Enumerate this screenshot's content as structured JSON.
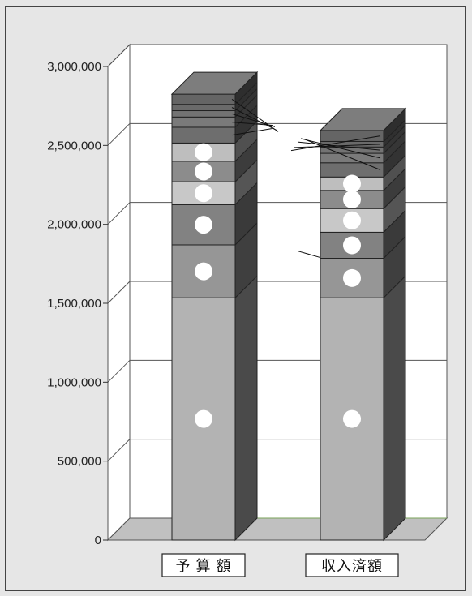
{
  "chart_data": {
    "type": "bar",
    "stacked": true,
    "three_d": true,
    "categories": [
      "予 算 額",
      "収入済額"
    ],
    "ylim": [
      0,
      3000000
    ],
    "yticks": [
      0,
      500000,
      1000000,
      1500000,
      2000000,
      2500000,
      3000000
    ],
    "ytick_labels": [
      "0",
      "500,000",
      "1,000,000",
      "1,500,000",
      "2,000,000",
      "2,500,000",
      "3,000,000"
    ],
    "grid": true,
    "legend": "none",
    "series": [
      {
        "values": [
          1535000,
          1535000
        ],
        "color": "#b3b3b3",
        "side_color": "#4a4a4a",
        "marker": true
      },
      {
        "values": [
          335000,
          250000
        ],
        "color": "#969696",
        "side_color": "#3f3f3f",
        "marker": true
      },
      {
        "values": [
          255000,
          165000
        ],
        "color": "#828282",
        "side_color": "#3a3a3a",
        "marker": true
      },
      {
        "values": [
          145000,
          150000
        ],
        "color": "#c8c8c8",
        "side_color": "#555555",
        "marker": true
      },
      {
        "values": [
          130000,
          115000
        ],
        "color": "#8c8c8c",
        "side_color": "#3c3c3c",
        "marker": true
      },
      {
        "values": [
          115000,
          85000
        ],
        "color": "#bebebe",
        "side_color": "#505050",
        "marker": true
      },
      {
        "values": [
          100000,
          90000
        ],
        "color": "#6e6e6e",
        "side_color": "#333333",
        "marker": false
      },
      {
        "values": [
          65000,
          60000
        ],
        "color": "#7a7a7a",
        "side_color": "#363636",
        "marker": false
      },
      {
        "values": [
          40000,
          40000
        ],
        "color": "#737373",
        "side_color": "#343434",
        "marker": false
      },
      {
        "values": [
          40000,
          35000
        ],
        "color": "#6a6a6a",
        "side_color": "#303030",
        "marker": false
      },
      {
        "values": [
          65000,
          70000
        ],
        "color": "#656565",
        "side_color": "#2e2e2e",
        "marker": false
      }
    ]
  }
}
